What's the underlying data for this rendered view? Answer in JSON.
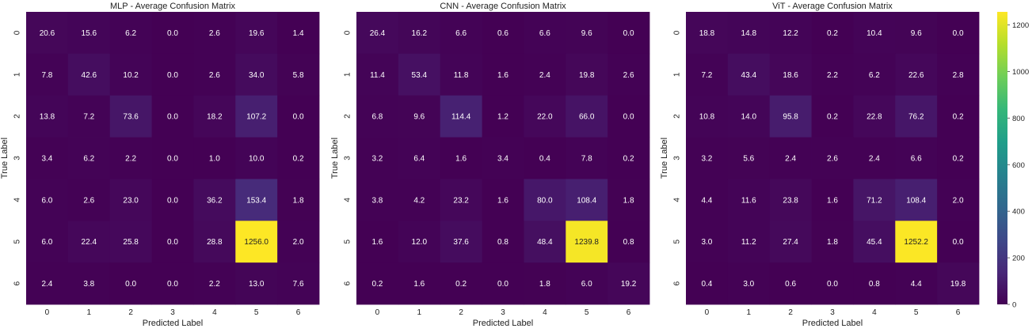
{
  "chart_data": [
    {
      "type": "heatmap",
      "title": "MLP - Average Confusion Matrix",
      "xlabel": "Predicted Label",
      "ylabel": "True Label",
      "x_ticks": [
        "0",
        "1",
        "2",
        "3",
        "4",
        "5",
        "6"
      ],
      "y_ticks": [
        "0",
        "1",
        "2",
        "3",
        "4",
        "5",
        "6"
      ],
      "values": [
        [
          20.6,
          15.6,
          6.2,
          0.0,
          2.6,
          19.6,
          1.4
        ],
        [
          7.8,
          42.6,
          10.2,
          0.0,
          2.6,
          34.0,
          5.8
        ],
        [
          13.8,
          7.2,
          73.6,
          0.0,
          18.2,
          107.2,
          0.0
        ],
        [
          3.4,
          6.2,
          2.2,
          0.0,
          1.0,
          10.0,
          0.2
        ],
        [
          6.0,
          2.6,
          23.0,
          0.0,
          36.2,
          153.4,
          1.8
        ],
        [
          6.0,
          22.4,
          25.8,
          0.0,
          28.8,
          1256.0,
          2.0
        ],
        [
          2.4,
          3.8,
          0.0,
          0.0,
          2.2,
          13.0,
          7.6
        ]
      ]
    },
    {
      "type": "heatmap",
      "title": "CNN - Average Confusion Matrix",
      "xlabel": "Predicted Label",
      "ylabel": "True Label",
      "x_ticks": [
        "0",
        "1",
        "2",
        "3",
        "4",
        "5",
        "6"
      ],
      "y_ticks": [
        "0",
        "1",
        "2",
        "3",
        "4",
        "5",
        "6"
      ],
      "values": [
        [
          26.4,
          16.2,
          6.6,
          0.6,
          6.6,
          9.6,
          0.0
        ],
        [
          11.4,
          53.4,
          11.8,
          1.6,
          2.4,
          19.8,
          2.6
        ],
        [
          6.8,
          9.6,
          114.4,
          1.2,
          22.0,
          66.0,
          0.0
        ],
        [
          3.2,
          6.4,
          1.6,
          3.4,
          0.4,
          7.8,
          0.2
        ],
        [
          3.8,
          4.2,
          23.2,
          1.6,
          80.0,
          108.4,
          1.8
        ],
        [
          1.6,
          12.0,
          37.6,
          0.8,
          48.4,
          1239.8,
          0.8
        ],
        [
          0.2,
          1.6,
          0.2,
          0.0,
          1.8,
          6.0,
          19.2
        ]
      ]
    },
    {
      "type": "heatmap",
      "title": "ViT - Average Confusion Matrix",
      "xlabel": "Predicted Label",
      "ylabel": "True Label",
      "x_ticks": [
        "0",
        "1",
        "2",
        "3",
        "4",
        "5",
        "6"
      ],
      "y_ticks": [
        "0",
        "1",
        "2",
        "3",
        "4",
        "5",
        "6"
      ],
      "values": [
        [
          18.8,
          14.8,
          12.2,
          0.2,
          10.4,
          9.6,
          0.0
        ],
        [
          7.2,
          43.4,
          18.6,
          2.2,
          6.2,
          22.6,
          2.8
        ],
        [
          10.8,
          14.0,
          95.8,
          0.2,
          22.8,
          76.2,
          0.2
        ],
        [
          3.2,
          5.6,
          2.4,
          2.6,
          2.4,
          6.6,
          0.2
        ],
        [
          4.4,
          11.6,
          23.8,
          1.6,
          71.2,
          108.4,
          2.0
        ],
        [
          3.0,
          11.2,
          27.4,
          1.8,
          45.4,
          1252.2,
          0.0
        ],
        [
          0.4,
          3.0,
          0.6,
          0.0,
          0.8,
          4.4,
          19.8
        ]
      ],
      "colorbar": {
        "colormap": "viridis",
        "range": [
          0,
          1256
        ],
        "ticks": [
          0,
          200,
          400,
          600,
          800,
          1000,
          1200
        ]
      }
    }
  ]
}
